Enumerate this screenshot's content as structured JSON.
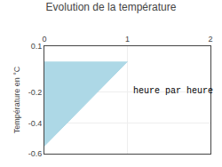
{
  "chart_data": {
    "type": "area",
    "title": "Evolution de la température",
    "ylabel": "Température en °C",
    "x": [
      0,
      0,
      1
    ],
    "values": [
      0,
      -0.55,
      0
    ],
    "color": "#add8e6",
    "annotations": [
      {
        "text": "heure par heure",
        "x": 1.05,
        "y": -0.19
      }
    ],
    "xlim": [
      0,
      2
    ],
    "ylim": [
      -0.6,
      0.1
    ],
    "xticks": [
      0,
      1,
      2
    ],
    "yticks": [
      -0.6,
      -0.4,
      -0.2,
      0.1
    ],
    "grid": true
  }
}
